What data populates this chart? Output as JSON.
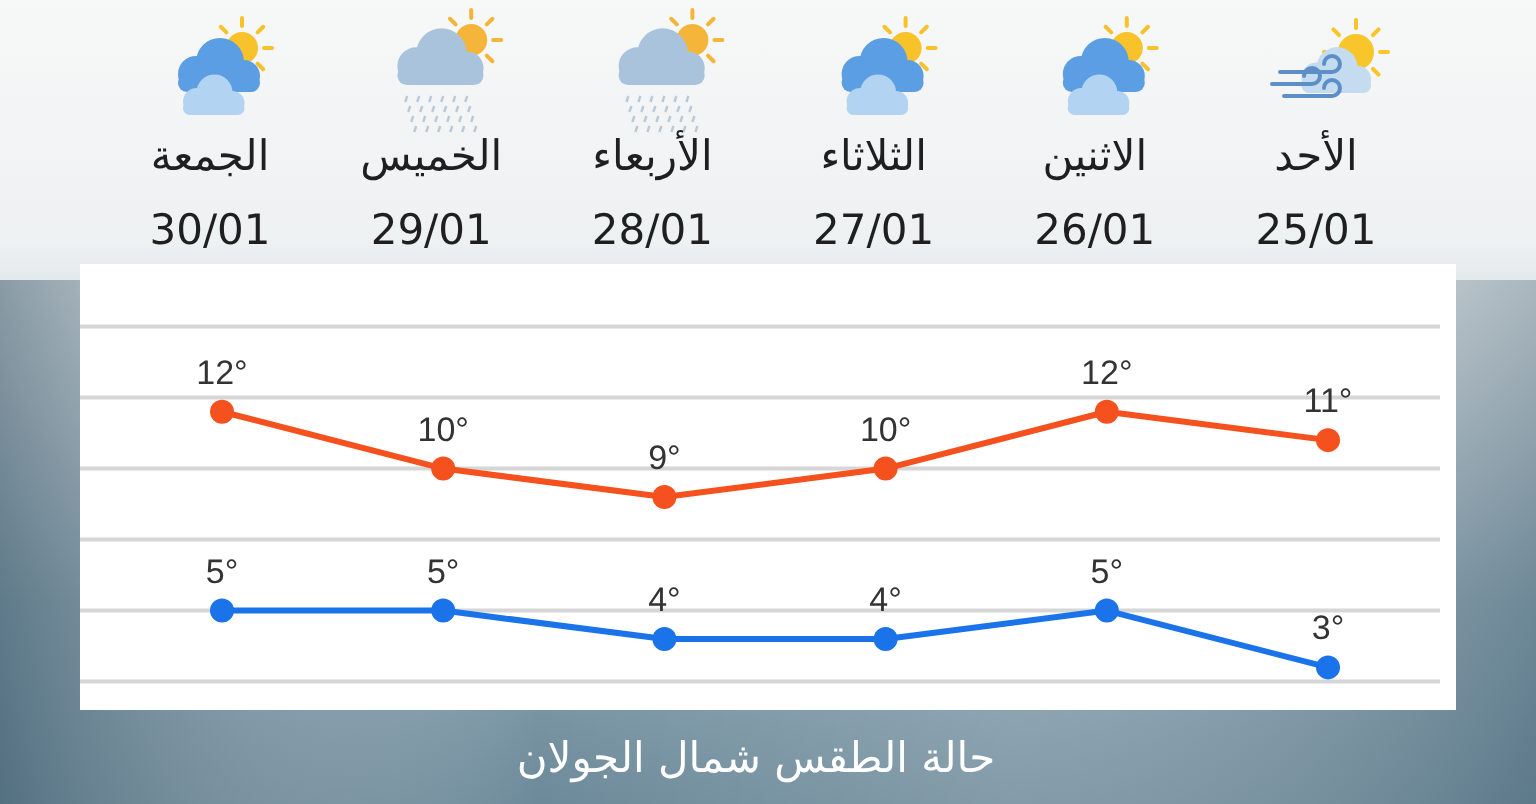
{
  "chart_data": {
    "type": "line",
    "title": "حالة الطقس شمال الجولان",
    "categories": [
      "الجمعة\n30/01",
      "الخميس\n29/01",
      "الأربعاء\n28/01",
      "الثلاثاء\n27/01",
      "الاثنين\n26/01",
      "الأحد\n25/01"
    ],
    "series": [
      {
        "color": "#f4511e",
        "values": [
          12,
          10,
          9,
          10,
          12,
          11
        ],
        "value_labels": [
          "12°",
          "10°",
          "9°",
          "10°",
          "12°",
          "11°"
        ]
      },
      {
        "color": "#1a73e8",
        "values": [
          5,
          5,
          4,
          4,
          5,
          3
        ],
        "value_labels": [
          "5°",
          "5°",
          "4°",
          "4°",
          "5°",
          "3°"
        ]
      }
    ],
    "ylim": [
      1.5,
      17.2
    ],
    "yticks": [
      {
        "value": 2.5,
        "label": null
      },
      {
        "value": 5,
        "label": null
      },
      {
        "value": 7.5,
        "label": null
      },
      {
        "value": 10,
        "label": null
      },
      {
        "value": 12.5,
        "label": null
      },
      {
        "value": 15,
        "label": null
      }
    ],
    "tick_labels": "x",
    "grid": "y",
    "marker": "circle",
    "line_style": "solid"
  }
}
